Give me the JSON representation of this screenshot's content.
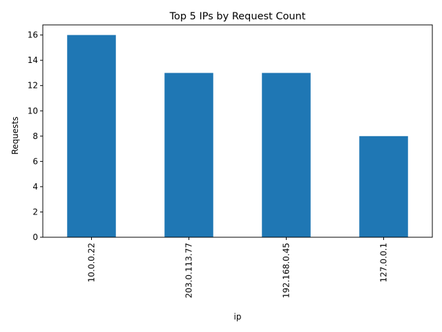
{
  "chart_data": {
    "type": "bar",
    "title": "Top 5 IPs by Request Count",
    "xlabel": "ip",
    "ylabel": "Requests",
    "categories": [
      "10.0.0.22",
      "203.0.113.77",
      "192.168.0.45",
      "127.0.0.1"
    ],
    "values": [
      16,
      13,
      13,
      8
    ],
    "ylim": [
      0,
      16.8
    ],
    "yticks": [
      0,
      2,
      4,
      6,
      8,
      10,
      12,
      14,
      16
    ],
    "grid": false,
    "legend": "none",
    "bar_color": "#1f77b4"
  }
}
